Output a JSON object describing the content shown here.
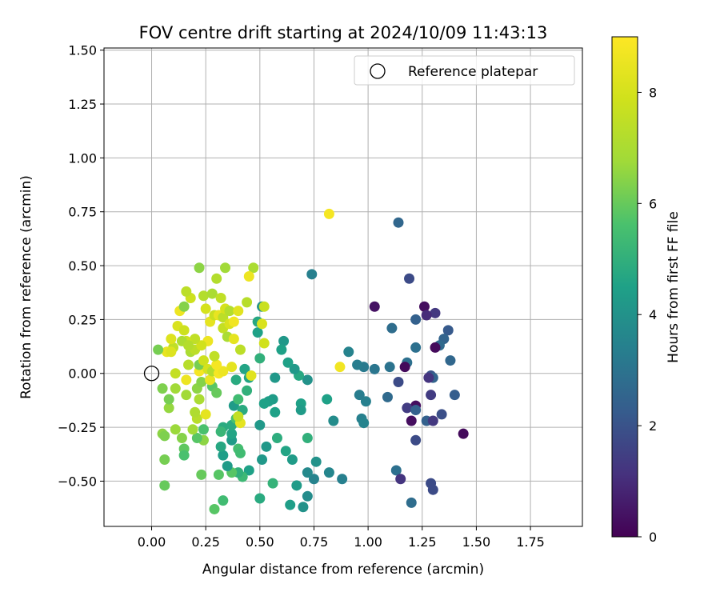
{
  "chart_data": {
    "type": "scatter",
    "title": "FOV centre drift starting at 2024/10/09 11:43:13",
    "xlabel": "Angular distance from reference (arcmin)",
    "ylabel": "Rotation from reference (arcmin)",
    "xlim": [
      -0.22,
      1.99
    ],
    "ylim": [
      -0.71,
      1.51
    ],
    "xticks": [
      0.0,
      0.25,
      0.5,
      0.75,
      1.0,
      1.25,
      1.5,
      1.75
    ],
    "xtick_labels": [
      "0.00",
      "0.25",
      "0.50",
      "0.75",
      "1.00",
      "1.25",
      "1.50",
      "1.75"
    ],
    "yticks": [
      -0.5,
      -0.25,
      0.0,
      0.25,
      0.5,
      0.75,
      1.0,
      1.25,
      1.5
    ],
    "ytick_labels": [
      "−0.50",
      "−0.25",
      "0.00",
      "0.25",
      "0.50",
      "0.75",
      "1.00",
      "1.25",
      "1.50"
    ],
    "grid": true,
    "legend": {
      "placement": "top-right",
      "entries": [
        {
          "label": "Reference platepar",
          "marker": "open-circle"
        }
      ]
    },
    "reference_point": {
      "x": 0.0,
      "y": 0.0
    },
    "colorbar": {
      "label": "Hours from first FF file",
      "colormap": "viridis",
      "range": [
        0,
        9
      ],
      "ticks": [
        0,
        2,
        4,
        6,
        8
      ],
      "tick_labels": [
        "0",
        "2",
        "4",
        "6",
        "8"
      ]
    },
    "points": [
      {
        "x": 1.03,
        "y": 0.31,
        "c": 0.4
      },
      {
        "x": 1.26,
        "y": 0.31,
        "c": 0.3
      },
      {
        "x": 1.31,
        "y": 0.28,
        "c": 1.3
      },
      {
        "x": 1.27,
        "y": 0.27,
        "c": 1.0
      },
      {
        "x": 1.19,
        "y": 0.44,
        "c": 1.8
      },
      {
        "x": 1.14,
        "y": 0.7,
        "c": 2.6
      },
      {
        "x": 1.22,
        "y": 0.25,
        "c": 2.4
      },
      {
        "x": 1.11,
        "y": 0.21,
        "c": 2.8
      },
      {
        "x": 1.37,
        "y": 0.2,
        "c": 2.2
      },
      {
        "x": 1.35,
        "y": 0.16,
        "c": 2.5
      },
      {
        "x": 1.33,
        "y": 0.13,
        "c": 2.7
      },
      {
        "x": 1.31,
        "y": 0.12,
        "c": 0.2
      },
      {
        "x": 1.22,
        "y": 0.12,
        "c": 2.9
      },
      {
        "x": 1.38,
        "y": 0.06,
        "c": 2.6
      },
      {
        "x": 1.18,
        "y": 0.05,
        "c": 2.9
      },
      {
        "x": 1.17,
        "y": 0.03,
        "c": 0.2
      },
      {
        "x": 1.1,
        "y": 0.03,
        "c": 3.0
      },
      {
        "x": 1.03,
        "y": 0.02,
        "c": 3.1
      },
      {
        "x": 0.98,
        "y": 0.03,
        "c": 3.2
      },
      {
        "x": 0.95,
        "y": 0.04,
        "c": 3.3
      },
      {
        "x": 0.91,
        "y": 0.1,
        "c": 3.5
      },
      {
        "x": 1.29,
        "y": -0.01,
        "c": 2.0
      },
      {
        "x": 1.3,
        "y": -0.02,
        "c": 2.5
      },
      {
        "x": 1.28,
        "y": -0.02,
        "c": 1.2
      },
      {
        "x": 1.14,
        "y": -0.04,
        "c": 1.8
      },
      {
        "x": 1.4,
        "y": -0.1,
        "c": 2.3
      },
      {
        "x": 1.29,
        "y": -0.1,
        "c": 1.4
      },
      {
        "x": 1.09,
        "y": -0.11,
        "c": 2.7
      },
      {
        "x": 0.99,
        "y": -0.13,
        "c": 3.4
      },
      {
        "x": 0.96,
        "y": -0.1,
        "c": 3.3
      },
      {
        "x": 1.22,
        "y": -0.15,
        "c": 0.3
      },
      {
        "x": 1.18,
        "y": -0.16,
        "c": 1.4
      },
      {
        "x": 1.22,
        "y": -0.17,
        "c": 2.4
      },
      {
        "x": 1.34,
        "y": -0.19,
        "c": 1.9
      },
      {
        "x": 1.27,
        "y": -0.22,
        "c": 2.4
      },
      {
        "x": 1.3,
        "y": -0.22,
        "c": 1.3
      },
      {
        "x": 1.2,
        "y": -0.22,
        "c": 0.3
      },
      {
        "x": 0.97,
        "y": -0.21,
        "c": 3.4
      },
      {
        "x": 0.98,
        "y": -0.23,
        "c": 3.5
      },
      {
        "x": 1.44,
        "y": -0.28,
        "c": 0.2
      },
      {
        "x": 1.22,
        "y": -0.31,
        "c": 1.8
      },
      {
        "x": 1.13,
        "y": -0.45,
        "c": 2.9
      },
      {
        "x": 1.15,
        "y": -0.49,
        "c": 1.2
      },
      {
        "x": 1.29,
        "y": -0.51,
        "c": 1.8
      },
      {
        "x": 1.3,
        "y": -0.54,
        "c": 1.8
      },
      {
        "x": 1.2,
        "y": -0.6,
        "c": 2.8
      },
      {
        "x": 0.88,
        "y": -0.49,
        "c": 3.4
      },
      {
        "x": 0.82,
        "y": -0.46,
        "c": 3.6
      },
      {
        "x": 0.75,
        "y": -0.49,
        "c": 3.5
      },
      {
        "x": 0.72,
        "y": -0.46,
        "c": 3.7
      },
      {
        "x": 0.76,
        "y": -0.41,
        "c": 4.0
      },
      {
        "x": 0.72,
        "y": -0.57,
        "c": 3.8
      },
      {
        "x": 0.7,
        "y": -0.62,
        "c": 4.0
      },
      {
        "x": 0.64,
        "y": -0.61,
        "c": 4.4
      },
      {
        "x": 0.67,
        "y": -0.52,
        "c": 4.3
      },
      {
        "x": 0.65,
        "y": -0.4,
        "c": 4.3
      },
      {
        "x": 0.62,
        "y": -0.36,
        "c": 4.6
      },
      {
        "x": 0.58,
        "y": -0.3,
        "c": 4.9
      },
      {
        "x": 0.72,
        "y": -0.3,
        "c": 5.0
      },
      {
        "x": 0.69,
        "y": -0.14,
        "c": 4.5
      },
      {
        "x": 0.69,
        "y": -0.17,
        "c": 4.3
      },
      {
        "x": 0.57,
        "y": -0.18,
        "c": 4.5
      },
      {
        "x": 0.56,
        "y": -0.12,
        "c": 4.3
      },
      {
        "x": 0.54,
        "y": -0.13,
        "c": 4.4
      },
      {
        "x": 0.52,
        "y": -0.14,
        "c": 4.5
      },
      {
        "x": 0.5,
        "y": -0.24,
        "c": 4.2
      },
      {
        "x": 0.53,
        "y": -0.34,
        "c": 4.2
      },
      {
        "x": 0.51,
        "y": -0.4,
        "c": 4.2
      },
      {
        "x": 0.5,
        "y": -0.58,
        "c": 4.8
      },
      {
        "x": 0.56,
        "y": -0.51,
        "c": 5.1
      },
      {
        "x": 0.81,
        "y": -0.12,
        "c": 4.5
      },
      {
        "x": 0.84,
        "y": -0.22,
        "c": 3.8
      },
      {
        "x": 0.72,
        "y": -0.03,
        "c": 4.0
      },
      {
        "x": 0.68,
        "y": -0.01,
        "c": 4.7
      },
      {
        "x": 0.66,
        "y": 0.02,
        "c": 4.2
      },
      {
        "x": 0.63,
        "y": 0.05,
        "c": 4.5
      },
      {
        "x": 0.57,
        "y": -0.02,
        "c": 4.2
      },
      {
        "x": 0.61,
        "y": 0.15,
        "c": 4.2
      },
      {
        "x": 0.6,
        "y": 0.11,
        "c": 4.5
      },
      {
        "x": 0.5,
        "y": 0.07,
        "c": 5.0
      },
      {
        "x": 0.49,
        "y": 0.19,
        "c": 4.5
      },
      {
        "x": 0.49,
        "y": 0.24,
        "c": 4.7
      },
      {
        "x": 0.51,
        "y": 0.31,
        "c": 4.0
      },
      {
        "x": 0.74,
        "y": 0.46,
        "c": 3.4
      },
      {
        "x": 0.45,
        "y": -0.45,
        "c": 4.5
      },
      {
        "x": 0.42,
        "y": -0.48,
        "c": 5.3
      },
      {
        "x": 0.4,
        "y": -0.46,
        "c": 5.0
      },
      {
        "x": 0.37,
        "y": -0.46,
        "c": 5.8
      },
      {
        "x": 0.35,
        "y": -0.43,
        "c": 4.3
      },
      {
        "x": 0.33,
        "y": -0.38,
        "c": 4.4
      },
      {
        "x": 0.32,
        "y": -0.34,
        "c": 4.7
      },
      {
        "x": 0.37,
        "y": -0.31,
        "c": 4.3
      },
      {
        "x": 0.37,
        "y": -0.28,
        "c": 4.6
      },
      {
        "x": 0.4,
        "y": -0.35,
        "c": 5.5
      },
      {
        "x": 0.41,
        "y": -0.37,
        "c": 5.4
      },
      {
        "x": 0.37,
        "y": -0.24,
        "c": 4.8
      },
      {
        "x": 0.39,
        "y": -0.21,
        "c": 5.6
      },
      {
        "x": 0.33,
        "y": -0.25,
        "c": 4.8
      },
      {
        "x": 0.32,
        "y": -0.27,
        "c": 5.2
      },
      {
        "x": 0.38,
        "y": -0.15,
        "c": 4.3
      },
      {
        "x": 0.42,
        "y": -0.17,
        "c": 4.8
      },
      {
        "x": 0.4,
        "y": -0.12,
        "c": 5.4
      },
      {
        "x": 0.44,
        "y": -0.08,
        "c": 5.0
      },
      {
        "x": 0.39,
        "y": -0.03,
        "c": 4.8
      },
      {
        "x": 0.45,
        "y": -0.02,
        "c": 4.6
      },
      {
        "x": 0.43,
        "y": 0.02,
        "c": 4.6
      },
      {
        "x": 0.31,
        "y": -0.47,
        "c": 5.8
      },
      {
        "x": 0.33,
        "y": -0.59,
        "c": 5.4
      },
      {
        "x": 0.29,
        "y": -0.63,
        "c": 5.8
      },
      {
        "x": 0.23,
        "y": -0.47,
        "c": 6.0
      },
      {
        "x": 0.24,
        "y": -0.31,
        "c": 6.5
      },
      {
        "x": 0.21,
        "y": -0.3,
        "c": 5.8
      },
      {
        "x": 0.24,
        "y": -0.26,
        "c": 5.6
      },
      {
        "x": 0.19,
        "y": -0.26,
        "c": 6.8
      },
      {
        "x": 0.14,
        "y": -0.3,
        "c": 6.4
      },
      {
        "x": 0.15,
        "y": -0.35,
        "c": 5.9
      },
      {
        "x": 0.15,
        "y": -0.38,
        "c": 5.6
      },
      {
        "x": 0.06,
        "y": -0.4,
        "c": 6.2
      },
      {
        "x": 0.06,
        "y": -0.52,
        "c": 6.0
      },
      {
        "x": 0.05,
        "y": -0.28,
        "c": 6.5
      },
      {
        "x": 0.06,
        "y": -0.29,
        "c": 6.3
      },
      {
        "x": 0.11,
        "y": -0.26,
        "c": 6.7
      },
      {
        "x": 0.08,
        "y": -0.16,
        "c": 6.6
      },
      {
        "x": 0.08,
        "y": -0.12,
        "c": 6.2
      },
      {
        "x": 0.11,
        "y": -0.07,
        "c": 6.8
      },
      {
        "x": 0.05,
        "y": -0.07,
        "c": 6.3
      },
      {
        "x": 0.16,
        "y": -0.1,
        "c": 6.8
      },
      {
        "x": 0.21,
        "y": -0.07,
        "c": 6.5
      },
      {
        "x": 0.22,
        "y": -0.12,
        "c": 7.0
      },
      {
        "x": 0.21,
        "y": -0.21,
        "c": 7.3
      },
      {
        "x": 0.2,
        "y": -0.18,
        "c": 7.1
      },
      {
        "x": 0.25,
        "y": -0.19,
        "c": 8.4
      },
      {
        "x": 0.28,
        "y": -0.06,
        "c": 5.8
      },
      {
        "x": 0.3,
        "y": -0.09,
        "c": 6.0
      },
      {
        "x": 0.23,
        "y": -0.04,
        "c": 6.4
      },
      {
        "x": 0.27,
        "y": -0.03,
        "c": 8.5
      },
      {
        "x": 0.22,
        "y": 0.01,
        "c": 8.8
      },
      {
        "x": 0.16,
        "y": -0.03,
        "c": 8.6
      },
      {
        "x": 0.11,
        "y": 0.0,
        "c": 7.6
      },
      {
        "x": 0.17,
        "y": 0.04,
        "c": 7.3
      },
      {
        "x": 0.18,
        "y": 0.1,
        "c": 7.0
      },
      {
        "x": 0.2,
        "y": 0.11,
        "c": 7.4
      },
      {
        "x": 0.22,
        "y": 0.04,
        "c": 6.2
      },
      {
        "x": 0.24,
        "y": 0.06,
        "c": 7.8
      },
      {
        "x": 0.26,
        "y": 0.02,
        "c": 8.0
      },
      {
        "x": 0.28,
        "y": 0.01,
        "c": 7.2
      },
      {
        "x": 0.31,
        "y": 0.0,
        "c": 8.8
      },
      {
        "x": 0.33,
        "y": 0.01,
        "c": 8.6
      },
      {
        "x": 0.3,
        "y": 0.04,
        "c": 8.8
      },
      {
        "x": 0.37,
        "y": 0.03,
        "c": 8.4
      },
      {
        "x": 0.29,
        "y": 0.08,
        "c": 7.5
      },
      {
        "x": 0.26,
        "y": 0.15,
        "c": 8.6
      },
      {
        "x": 0.23,
        "y": 0.13,
        "c": 7.9
      },
      {
        "x": 0.2,
        "y": 0.16,
        "c": 7.5
      },
      {
        "x": 0.16,
        "y": 0.15,
        "c": 7.8
      },
      {
        "x": 0.14,
        "y": 0.15,
        "c": 7.0
      },
      {
        "x": 0.1,
        "y": 0.12,
        "c": 7.5
      },
      {
        "x": 0.07,
        "y": 0.1,
        "c": 8.5
      },
      {
        "x": 0.09,
        "y": 0.1,
        "c": 8.2
      },
      {
        "x": 0.03,
        "y": 0.11,
        "c": 6.2
      },
      {
        "x": 0.09,
        "y": 0.16,
        "c": 8.2
      },
      {
        "x": 0.12,
        "y": 0.22,
        "c": 8.1
      },
      {
        "x": 0.15,
        "y": 0.2,
        "c": 7.8
      },
      {
        "x": 0.17,
        "y": 0.13,
        "c": 7.2
      },
      {
        "x": 0.13,
        "y": 0.29,
        "c": 8.6
      },
      {
        "x": 0.15,
        "y": 0.31,
        "c": 6.4
      },
      {
        "x": 0.18,
        "y": 0.35,
        "c": 7.8
      },
      {
        "x": 0.16,
        "y": 0.38,
        "c": 7.4
      },
      {
        "x": 0.24,
        "y": 0.36,
        "c": 7.2
      },
      {
        "x": 0.28,
        "y": 0.37,
        "c": 7.0
      },
      {
        "x": 0.32,
        "y": 0.35,
        "c": 7.5
      },
      {
        "x": 0.25,
        "y": 0.3,
        "c": 8.0
      },
      {
        "x": 0.27,
        "y": 0.24,
        "c": 8.4
      },
      {
        "x": 0.29,
        "y": 0.27,
        "c": 7.7
      },
      {
        "x": 0.31,
        "y": 0.27,
        "c": 8.5
      },
      {
        "x": 0.33,
        "y": 0.26,
        "c": 7.4
      },
      {
        "x": 0.34,
        "y": 0.3,
        "c": 8.0
      },
      {
        "x": 0.36,
        "y": 0.29,
        "c": 7.2
      },
      {
        "x": 0.33,
        "y": 0.21,
        "c": 7.6
      },
      {
        "x": 0.36,
        "y": 0.23,
        "c": 8.1
      },
      {
        "x": 0.38,
        "y": 0.24,
        "c": 8.7
      },
      {
        "x": 0.35,
        "y": 0.17,
        "c": 7.0
      },
      {
        "x": 0.38,
        "y": 0.16,
        "c": 8.4
      },
      {
        "x": 0.41,
        "y": 0.11,
        "c": 7.4
      },
      {
        "x": 0.4,
        "y": 0.29,
        "c": 8.3
      },
      {
        "x": 0.44,
        "y": 0.33,
        "c": 7.3
      },
      {
        "x": 0.3,
        "y": 0.44,
        "c": 7.2
      },
      {
        "x": 0.22,
        "y": 0.49,
        "c": 6.5
      },
      {
        "x": 0.34,
        "y": 0.49,
        "c": 6.8
      },
      {
        "x": 0.47,
        "y": 0.49,
        "c": 7.0
      },
      {
        "x": 0.45,
        "y": 0.45,
        "c": 8.6
      },
      {
        "x": 0.52,
        "y": 0.31,
        "c": 7.7
      },
      {
        "x": 0.51,
        "y": 0.23,
        "c": 8.1
      },
      {
        "x": 0.52,
        "y": 0.14,
        "c": 7.9
      },
      {
        "x": 0.46,
        "y": -0.01,
        "c": 8.3
      },
      {
        "x": 0.41,
        "y": -0.23,
        "c": 8.4
      },
      {
        "x": 0.4,
        "y": -0.2,
        "c": 7.6
      },
      {
        "x": 0.82,
        "y": 0.74,
        "c": 8.8
      },
      {
        "x": 0.87,
        "y": 0.03,
        "c": 8.7
      }
    ]
  }
}
